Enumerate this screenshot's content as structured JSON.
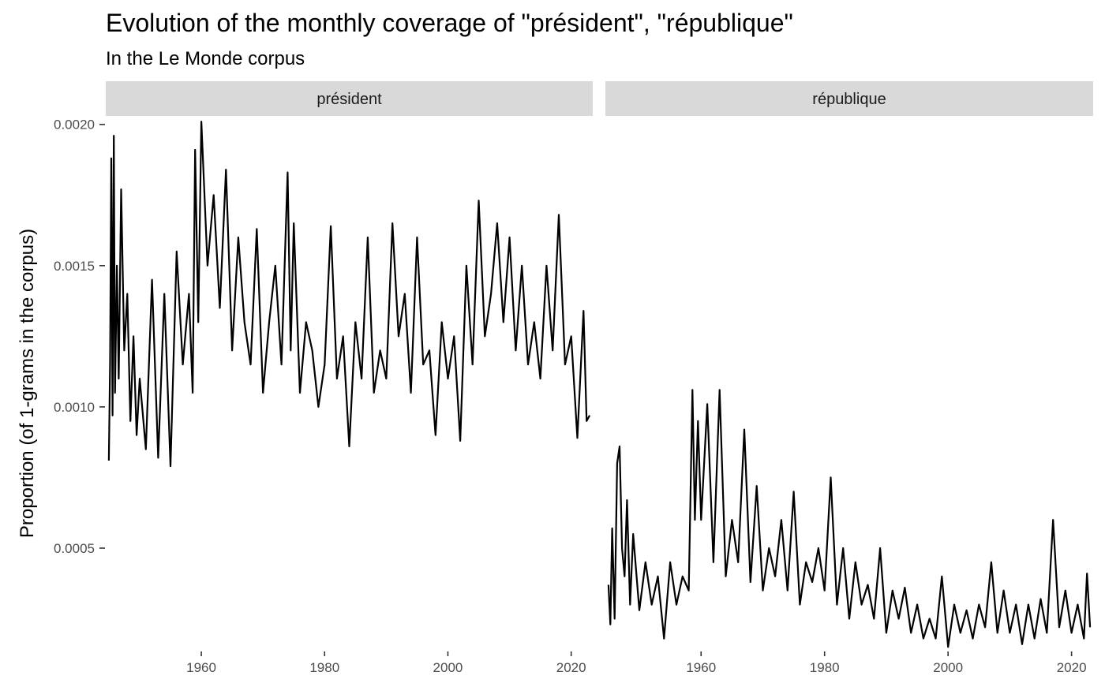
{
  "chart_data": {
    "type": "line",
    "title": "Evolution of the monthly coverage of \"président\", \"république\"",
    "subtitle": "In the Le Monde corpus",
    "xlabel": "",
    "ylabel": "Proportion (of 1-grams in the corpus)",
    "xlim": [
      1944.5,
      2023.5
    ],
    "ylim": [
      0.000137,
      0.00203
    ],
    "y_ticks": [
      0.0005,
      0.001,
      0.0015,
      0.002
    ],
    "y_tick_labels": [
      "0.0005",
      "0.0010",
      "0.0015",
      "0.0020"
    ],
    "x_ticks": [
      1960,
      1980,
      2000,
      2020
    ],
    "x_tick_labels": [
      "1960",
      "1980",
      "2000",
      "2020"
    ],
    "grid": false,
    "line_color": "#000000",
    "strip_fill": "#d9d9d9",
    "facets": [
      {
        "name": "président",
        "x": [
          1945.0,
          1945.2,
          1945.4,
          1945.6,
          1945.8,
          1946.0,
          1946.3,
          1946.6,
          1947.0,
          1947.5,
          1948.0,
          1948.5,
          1949.0,
          1949.5,
          1950.0,
          1951.0,
          1952.0,
          1953.0,
          1954.0,
          1955.0,
          1956.0,
          1957.0,
          1958.0,
          1958.6,
          1959.0,
          1959.5,
          1960.0,
          1961.0,
          1962.0,
          1963.0,
          1964.0,
          1965.0,
          1966.0,
          1967.0,
          1968.0,
          1969.0,
          1970.0,
          1971.0,
          1972.0,
          1973.0,
          1974.0,
          1974.5,
          1975.0,
          1976.0,
          1977.0,
          1978.0,
          1979.0,
          1980.0,
          1981.0,
          1982.0,
          1983.0,
          1984.0,
          1985.0,
          1986.0,
          1987.0,
          1988.0,
          1989.0,
          1990.0,
          1991.0,
          1992.0,
          1993.0,
          1994.0,
          1995.0,
          1996.0,
          1997.0,
          1998.0,
          1999.0,
          2000.0,
          2001.0,
          2002.0,
          2003.0,
          2004.0,
          2005.0,
          2006.0,
          2007.0,
          2008.0,
          2009.0,
          2010.0,
          2011.0,
          2012.0,
          2013.0,
          2014.0,
          2015.0,
          2016.0,
          2017.0,
          2018.0,
          2019.0,
          2020.0,
          2021.0,
          2022.0,
          2022.5,
          2023.0
        ],
        "y": [
          0.00081,
          0.00116,
          0.00188,
          0.00097,
          0.00196,
          0.00105,
          0.0015,
          0.0011,
          0.00177,
          0.0012,
          0.0014,
          0.00095,
          0.00125,
          0.0009,
          0.0011,
          0.00085,
          0.00145,
          0.00082,
          0.0014,
          0.00079,
          0.00155,
          0.00115,
          0.0014,
          0.00105,
          0.00191,
          0.0013,
          0.00201,
          0.0015,
          0.00175,
          0.00135,
          0.00184,
          0.0012,
          0.0016,
          0.0013,
          0.00115,
          0.00163,
          0.00105,
          0.0013,
          0.0015,
          0.00115,
          0.00183,
          0.0012,
          0.00165,
          0.00105,
          0.0013,
          0.0012,
          0.001,
          0.00115,
          0.00164,
          0.0011,
          0.00125,
          0.00086,
          0.0013,
          0.0011,
          0.0016,
          0.00105,
          0.0012,
          0.0011,
          0.00165,
          0.00125,
          0.0014,
          0.00105,
          0.0016,
          0.00115,
          0.0012,
          0.0009,
          0.0013,
          0.0011,
          0.00125,
          0.00088,
          0.0015,
          0.00115,
          0.00173,
          0.00125,
          0.0014,
          0.00165,
          0.0013,
          0.0016,
          0.0012,
          0.0015,
          0.00115,
          0.0013,
          0.0011,
          0.0015,
          0.0012,
          0.00168,
          0.00115,
          0.00125,
          0.00089,
          0.00134,
          0.00095,
          0.00097
        ]
      },
      {
        "name": "république",
        "x": [
          1945.0,
          1945.3,
          1945.6,
          1946.0,
          1946.4,
          1946.8,
          1947.2,
          1947.6,
          1948.0,
          1948.5,
          1949.0,
          1950.0,
          1951.0,
          1952.0,
          1953.0,
          1954.0,
          1955.0,
          1956.0,
          1957.0,
          1958.0,
          1958.6,
          1959.0,
          1959.5,
          1960.0,
          1961.0,
          1962.0,
          1963.0,
          1964.0,
          1965.0,
          1966.0,
          1967.0,
          1968.0,
          1969.0,
          1970.0,
          1971.0,
          1972.0,
          1973.0,
          1974.0,
          1975.0,
          1976.0,
          1977.0,
          1978.0,
          1979.0,
          1980.0,
          1981.0,
          1982.0,
          1983.0,
          1984.0,
          1985.0,
          1986.0,
          1987.0,
          1988.0,
          1989.0,
          1990.0,
          1991.0,
          1992.0,
          1993.0,
          1994.0,
          1995.0,
          1996.0,
          1997.0,
          1998.0,
          1999.0,
          2000.0,
          2001.0,
          2002.0,
          2003.0,
          2004.0,
          2005.0,
          2006.0,
          2007.0,
          2008.0,
          2009.0,
          2010.0,
          2011.0,
          2012.0,
          2013.0,
          2014.0,
          2015.0,
          2016.0,
          2017.0,
          2018.0,
          2019.0,
          2020.0,
          2021.0,
          2022.0,
          2022.5,
          2023.0
        ],
        "y": [
          0.00037,
          0.00023,
          0.00057,
          0.00025,
          0.0008,
          0.00086,
          0.0005,
          0.0004,
          0.00067,
          0.0003,
          0.00055,
          0.00028,
          0.00045,
          0.0003,
          0.0004,
          0.00018,
          0.00045,
          0.0003,
          0.0004,
          0.00035,
          0.00106,
          0.0006,
          0.00095,
          0.0006,
          0.00101,
          0.00045,
          0.00106,
          0.0004,
          0.0006,
          0.00045,
          0.00092,
          0.00038,
          0.00072,
          0.00035,
          0.0005,
          0.0004,
          0.0006,
          0.00035,
          0.0007,
          0.0003,
          0.00045,
          0.00038,
          0.0005,
          0.00035,
          0.00075,
          0.0003,
          0.0005,
          0.00025,
          0.00045,
          0.0003,
          0.00037,
          0.00025,
          0.0005,
          0.0002,
          0.00035,
          0.00025,
          0.00036,
          0.0002,
          0.0003,
          0.00018,
          0.00025,
          0.00018,
          0.0004,
          0.00015,
          0.0003,
          0.0002,
          0.00028,
          0.00018,
          0.0003,
          0.00022,
          0.00045,
          0.0002,
          0.00035,
          0.0002,
          0.0003,
          0.00016,
          0.0003,
          0.00018,
          0.00032,
          0.0002,
          0.0006,
          0.00022,
          0.00035,
          0.0002,
          0.0003,
          0.00018,
          0.00041,
          0.00022
        ]
      }
    ]
  }
}
